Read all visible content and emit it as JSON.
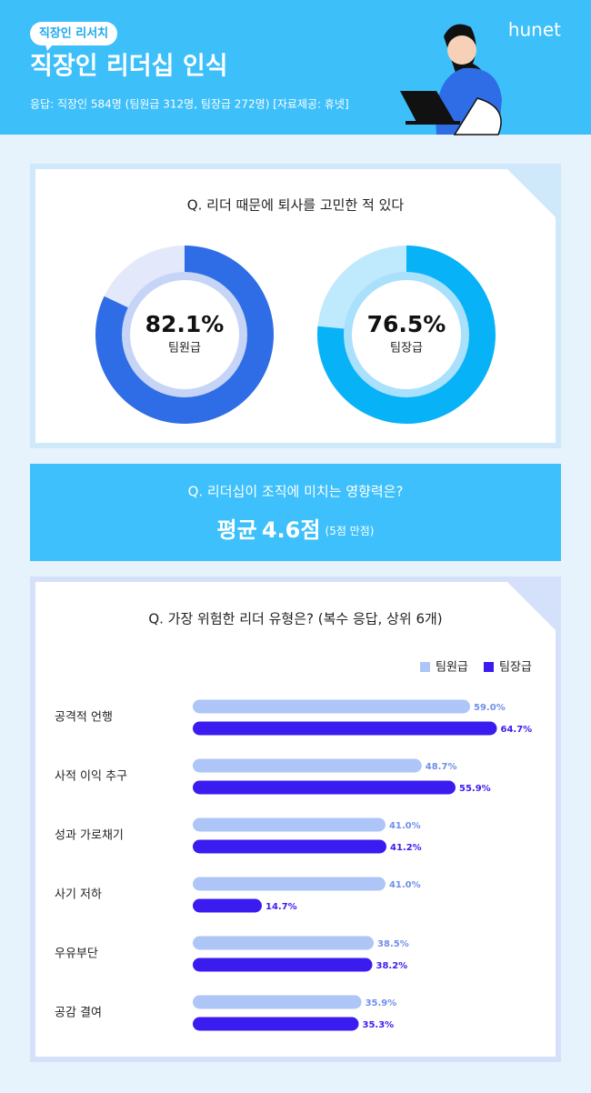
{
  "header": {
    "tag": "직장인 리서치",
    "title": "직장인 리더십 인식",
    "source": "응답: 직장인 584명 (팀원급 312명, 팀장급 272명) [자료제공: 휴넷]",
    "brand": "hunet"
  },
  "chart_data": [
    {
      "type": "donut",
      "title": "Q. 리더 때문에 퇴사를 고민한 적 있다",
      "categories": [
        "팀원급",
        "팀장급"
      ],
      "values": [
        82.1,
        76.5
      ],
      "value_labels": [
        "82.1%",
        "76.5%"
      ],
      "colors": [
        "#2f6de6",
        "#08b2f7"
      ],
      "track_colors": [
        "#e3e9fb",
        "#bfe9fd"
      ],
      "inner_colors": [
        "#c6d4f6",
        "#a9e0fc"
      ]
    },
    {
      "type": "stat",
      "title": "Q. 리더십이 조직에 미치는 영향력은?",
      "prefix": "평균",
      "value": 4.6,
      "value_label": "4.6점",
      "note": "(5점 만점)"
    },
    {
      "type": "hbar",
      "title": "Q. 가장 위험한 리더 유형은? (복수 응답, 상위 6개)",
      "categories": [
        "공격적 언행",
        "사적 이익 추구",
        "성과 가로채기",
        "사기 저하",
        "우유부단",
        "공감 결여"
      ],
      "legend": "upper right",
      "series": [
        {
          "name": "팀원급",
          "color": "#aec6f7",
          "label_color": "#6f8fe8",
          "values": [
            59.0,
            48.7,
            41.0,
            41.0,
            38.5,
            35.9
          ],
          "value_labels": [
            "59.0%",
            "48.7%",
            "41.0%",
            "41.0%",
            "38.5%",
            "35.9%"
          ]
        },
        {
          "name": "팀장급",
          "color": "#3b1cf0",
          "label_color": "#3b1cf0",
          "values": [
            64.7,
            55.9,
            41.2,
            14.7,
            38.2,
            35.3
          ],
          "value_labels": [
            "64.7%",
            "55.9%",
            "41.2%",
            "14.7%",
            "38.2%",
            "35.3%"
          ]
        }
      ]
    }
  ]
}
